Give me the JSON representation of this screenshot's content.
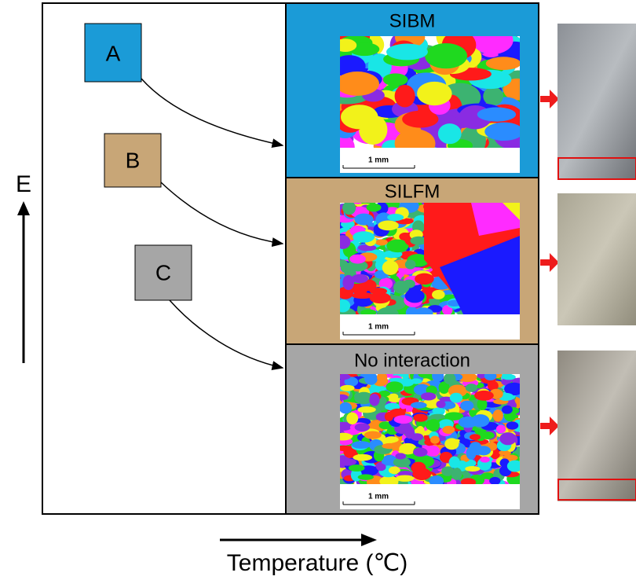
{
  "boxes": [
    "A",
    "B",
    "C"
  ],
  "panels": [
    {
      "title": "SIBM",
      "scale_bar": "1 mm"
    },
    {
      "title": "SILFM",
      "scale_bar": "1 mm"
    },
    {
      "title": "No interaction",
      "scale_bar": "1 mm"
    }
  ],
  "y_axis": {
    "label": "E"
  },
  "x_axis": {
    "label": "Temperature (℃)"
  }
}
